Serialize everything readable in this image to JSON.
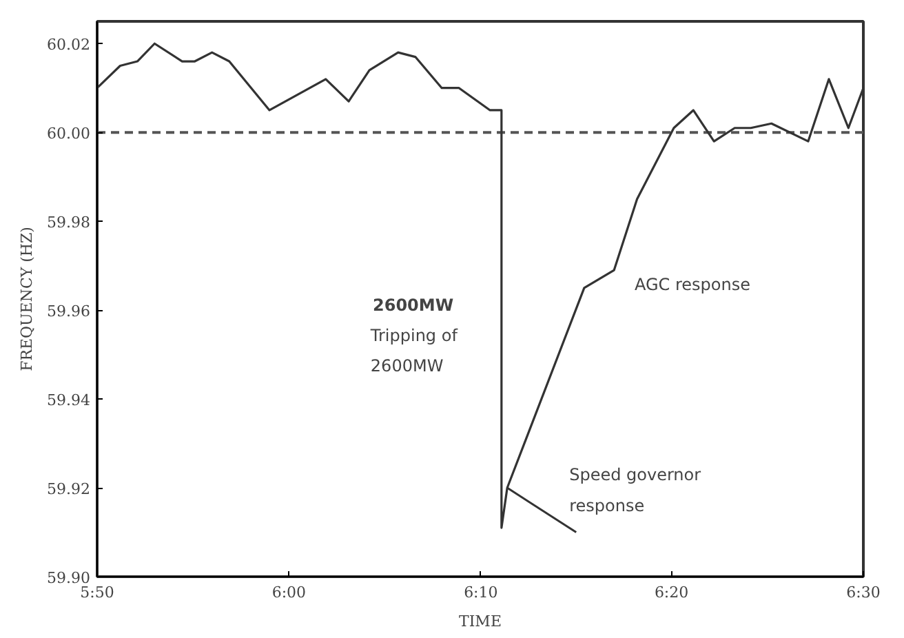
{
  "chart_data": {
    "type": "line",
    "xlabel": "TIME",
    "ylabel": "FREQUENCY (HZ)",
    "x": [
      5.833,
      5.853,
      5.868,
      5.883,
      5.907,
      5.918,
      5.933,
      5.948,
      5.983,
      6.032,
      6.052,
      6.07,
      6.095,
      6.11,
      6.133,
      6.148,
      6.175,
      6.185,
      6.185,
      6.19,
      6.257,
      6.283,
      6.303,
      6.335,
      6.352,
      6.37,
      6.388,
      6.402,
      6.42,
      6.452,
      6.47,
      6.487,
      6.5
    ],
    "series": [
      {
        "color": "#333333",
        "values": [
          60.01,
          60.015,
          60.016,
          60.02,
          60.016,
          60.016,
          60.018,
          60.016,
          60.005,
          60.012,
          60.007,
          60.014,
          60.018,
          60.017,
          60.01,
          60.01,
          60.005,
          60.005,
          59.911,
          59.92,
          59.965,
          59.969,
          59.985,
          60.001,
          60.005,
          59.998,
          60.001,
          60.001,
          60.002,
          59.998,
          60.012,
          60.001,
          60.01
        ]
      }
    ],
    "xlim": [
      5.833,
      6.5
    ],
    "xticks": [
      {
        "value": 5.833,
        "label": "5:50"
      },
      {
        "value": 6.0,
        "label": "6:00"
      },
      {
        "value": 6.167,
        "label": "6:10"
      },
      {
        "value": 6.333,
        "label": "6:20"
      },
      {
        "value": 6.5,
        "label": "6:30"
      }
    ],
    "ylim": [
      59.9,
      60.025
    ],
    "yticks": [
      {
        "value": 59.9,
        "label": "59.90"
      },
      {
        "value": 59.92,
        "label": "59.92"
      },
      {
        "value": 59.94,
        "label": "59.94"
      },
      {
        "value": 59.96,
        "label": "59.96"
      },
      {
        "value": 59.98,
        "label": "59.98"
      },
      {
        "value": 60.0,
        "label": "60.00"
      },
      {
        "value": 60.02,
        "label": "60.02"
      }
    ],
    "ref_lines": [
      {
        "axis": "y",
        "value": 60.0,
        "line_style": "dashed",
        "color": "#555555"
      }
    ],
    "annotations": [
      "2600MW",
      {
        "text": "Tripping of\n2600MW",
        "x": 6.185,
        "y": 59.957
      },
      "AGC response",
      {
        "text": "Speed governor\nresponse",
        "x": 6.19,
        "y": 59.92
      }
    ],
    "grid": false,
    "marker": "none",
    "line_style": "solid"
  }
}
